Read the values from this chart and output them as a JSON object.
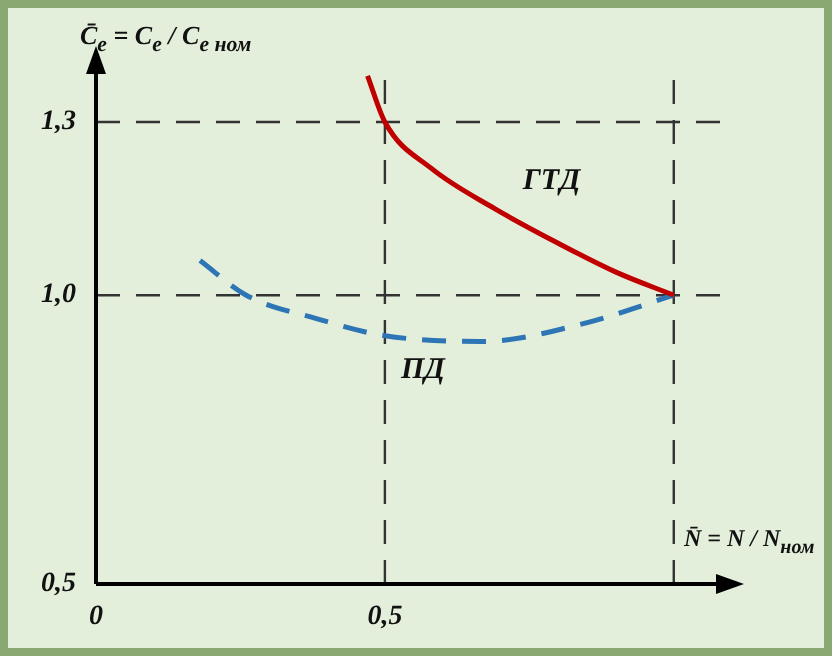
{
  "chart_data": {
    "type": "line",
    "ylabel": "C̄$_{e}$ = C$_{e}$ / C$_{e ном}$",
    "xlabel": "N̄ = N / N$_{ном}$",
    "xlim": [
      0,
      1.08
    ],
    "ylim": [
      0.5,
      1.39
    ],
    "xticks": [
      0,
      {
        "value": 0.5,
        "label": "0,5"
      }
    ],
    "yticks": [
      {
        "value": 0.5,
        "label": "0,5"
      },
      {
        "value": 1.0,
        "label": "1,0"
      },
      {
        "value": 1.3,
        "label": "1,3"
      }
    ],
    "grid": false,
    "legend": false,
    "marker": "none",
    "series": [
      {
        "name": "ГТД",
        "color": "#c00000",
        "line_style": "solid",
        "x": [
          0.47,
          0.5,
          0.58,
          0.69,
          0.8,
          0.9,
          1.0
        ],
        "values": [
          1.38,
          1.3,
          1.22,
          1.15,
          1.09,
          1.04,
          1.0
        ]
      },
      {
        "name": "ПД",
        "color": "#2e75b6",
        "line_style": "dashed",
        "x": [
          0.18,
          0.26,
          0.38,
          0.5,
          0.67,
          0.84,
          1.0
        ],
        "values": [
          1.06,
          1.0,
          0.96,
          0.93,
          0.92,
          0.95,
          1.0
        ]
      }
    ],
    "ref_lines": [
      {
        "axis": "y",
        "value": 1.3,
        "color": "#333333",
        "line_style": "dashed"
      },
      {
        "axis": "y",
        "value": 1.0,
        "color": "#333333",
        "line_style": "dashed"
      },
      {
        "axis": "x",
        "value": 0.5,
        "color": "#333333",
        "line_style": "dashed"
      },
      {
        "axis": "x",
        "value": 1.0,
        "color": "#333333",
        "line_style": "dashed"
      }
    ]
  }
}
